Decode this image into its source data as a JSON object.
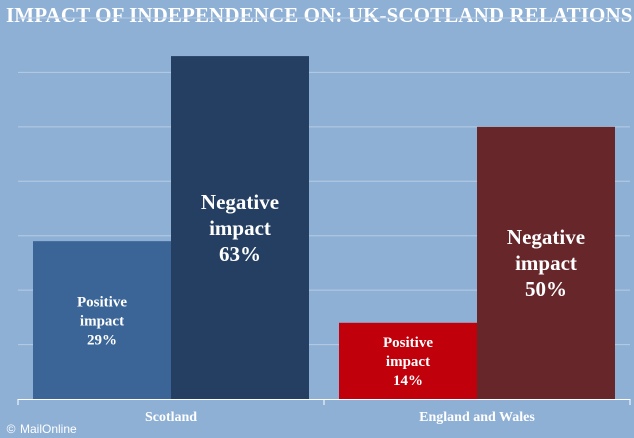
{
  "chart_data": {
    "type": "bar",
    "title": "IMPACT OF INDEPENDENCE ON: UK-SCOTLAND RELATIONS",
    "categories": [
      "Scotland",
      "England and Wales"
    ],
    "series": [
      {
        "name": "Positive impact",
        "values": [
          29,
          14
        ],
        "label_lines": [
          [
            "Positive",
            "impact",
            "29%"
          ],
          [
            "Positive",
            "impact",
            "14%"
          ]
        ],
        "colors": [
          "#3b6597",
          "#c0000b"
        ]
      },
      {
        "name": "Negative impact",
        "values": [
          63,
          50
        ],
        "label_lines": [
          [
            "Negative",
            "impact",
            "63%"
          ],
          [
            "Negative",
            "impact",
            "50%"
          ]
        ],
        "colors": [
          "#243f62",
          "#66262a"
        ]
      }
    ],
    "ylim": [
      0,
      70
    ],
    "grid": true,
    "xlabel": "",
    "ylabel": ""
  },
  "colors": {
    "background": "#8fb0d5",
    "gridline": "#b7cbe4",
    "axis": "#ffffff",
    "text": "#ffffff"
  },
  "credit": {
    "icon": "copyright-icon",
    "symbol": "©",
    "text": "MailOnline"
  }
}
